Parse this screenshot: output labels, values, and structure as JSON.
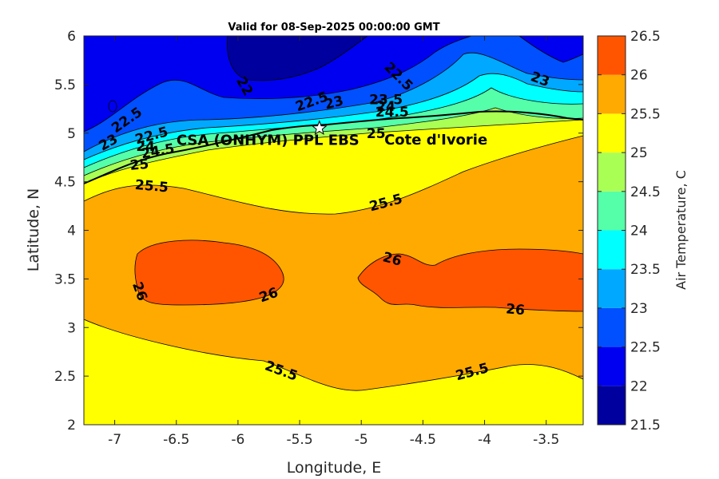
{
  "chart_data": {
    "type": "heatmap",
    "subtype": "filled-contour",
    "title": "Valid for 08-Sep-2025 00:00:00 GMT",
    "xlabel": "Longitude, E",
    "ylabel": "Latitude, N",
    "xlim": [
      -7.25,
      -3.2
    ],
    "ylim": [
      2,
      6
    ],
    "xticks": [
      -7,
      -6.5,
      -6,
      -5.5,
      -5,
      -4.5,
      -4,
      -3.5
    ],
    "yticks": [
      2,
      2.5,
      3,
      3.5,
      4,
      4.5,
      5,
      5.5,
      6
    ],
    "colorbar": {
      "label": "Air Temperature, C",
      "min": 21.5,
      "max": 26.5,
      "ticks": [
        21.5,
        22,
        22.5,
        23,
        23.5,
        24,
        24.5,
        25,
        25.5,
        26,
        26.5
      ],
      "bands": [
        {
          "from": 21.5,
          "to": 22.0,
          "color": "#00009F"
        },
        {
          "from": 22.0,
          "to": 22.5,
          "color": "#0000F0"
        },
        {
          "from": 22.5,
          "to": 23.0,
          "color": "#0050FF"
        },
        {
          "from": 23.0,
          "to": 23.5,
          "color": "#00A8FF"
        },
        {
          "from": 23.5,
          "to": 24.0,
          "color": "#00FFFF"
        },
        {
          "from": 24.0,
          "to": 24.5,
          "color": "#55FFAA"
        },
        {
          "from": 24.5,
          "to": 25.0,
          "color": "#AAFF55"
        },
        {
          "from": 25.0,
          "to": 25.5,
          "color": "#FFFF00"
        },
        {
          "from": 25.5,
          "to": 26.0,
          "color": "#FFAA00"
        },
        {
          "from": 26.0,
          "to": 26.5,
          "color": "#FF5500"
        },
        {
          "from": 26.5,
          "to": 27.0,
          "color": "#FF0000"
        }
      ]
    },
    "contour_labels": [
      {
        "text": "22",
        "lon": -5.95,
        "lat": 5.48,
        "rotate": 60
      },
      {
        "text": "22.5",
        "lon": -6.9,
        "lat": 5.13,
        "rotate": -35
      },
      {
        "text": "22.5",
        "lon": -5.4,
        "lat": 5.32,
        "rotate": -20
      },
      {
        "text": "22.5",
        "lon": -4.7,
        "lat": 5.58,
        "rotate": 45
      },
      {
        "text": "23",
        "lon": -7.05,
        "lat": 4.9,
        "rotate": -30
      },
      {
        "text": "23",
        "lon": -5.22,
        "lat": 5.31,
        "rotate": -15
      },
      {
        "text": "23",
        "lon": -3.55,
        "lat": 5.55,
        "rotate": 20
      },
      {
        "text": "22.5",
        "lon": -6.7,
        "lat": 4.97,
        "rotate": -15
      },
      {
        "text": "23.5",
        "lon": -4.8,
        "lat": 5.34,
        "rotate": 0
      },
      {
        "text": "24",
        "lon": -6.75,
        "lat": 4.86,
        "rotate": 0
      },
      {
        "text": "24",
        "lon": -4.8,
        "lat": 5.27,
        "rotate": 0
      },
      {
        "text": "24.5",
        "lon": -6.65,
        "lat": 4.81,
        "rotate": -10
      },
      {
        "text": "24.5",
        "lon": -4.75,
        "lat": 5.21,
        "rotate": 0
      },
      {
        "text": "25",
        "lon": -6.8,
        "lat": 4.67,
        "rotate": -5
      },
      {
        "text": "25",
        "lon": -4.88,
        "lat": 4.99,
        "rotate": 0
      },
      {
        "text": "25.5",
        "lon": -6.7,
        "lat": 4.45,
        "rotate": 5
      },
      {
        "text": "25.5",
        "lon": -4.8,
        "lat": 4.28,
        "rotate": -15
      },
      {
        "text": "25.5",
        "lon": -5.65,
        "lat": 2.55,
        "rotate": 20
      },
      {
        "text": "25.5",
        "lon": -4.1,
        "lat": 2.54,
        "rotate": -15
      },
      {
        "text": "26",
        "lon": -6.8,
        "lat": 3.37,
        "rotate": 70
      },
      {
        "text": "26",
        "lon": -5.75,
        "lat": 3.33,
        "rotate": -20
      },
      {
        "text": "26",
        "lon": -4.75,
        "lat": 3.7,
        "rotate": 15
      },
      {
        "text": "26",
        "lon": -3.75,
        "lat": 3.18,
        "rotate": 5
      }
    ],
    "site_marker": {
      "label": "CSA (ONHYM) PPL EBS",
      "lon": -5.34,
      "lat": 5.05
    },
    "region_label": {
      "text": "Cote d'Ivorie",
      "lon": -4.8,
      "lat": 4.94
    }
  }
}
